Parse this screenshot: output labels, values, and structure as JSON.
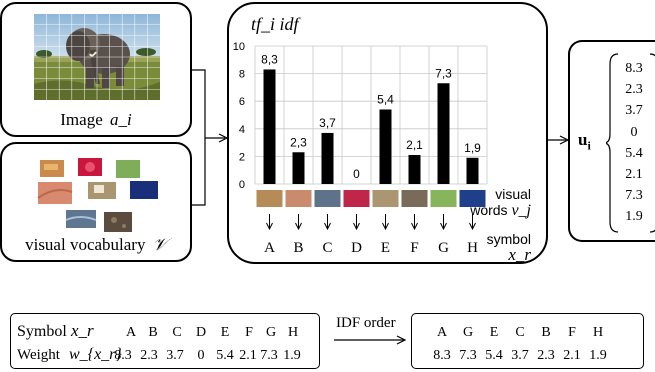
{
  "image_box": {
    "label": "Image",
    "math": "a_i"
  },
  "vocab_box": {
    "label": "visual vocabulary",
    "math": "𝒱"
  },
  "chart_data": {
    "type": "bar",
    "title": "tf_i idf",
    "categories": [
      "A",
      "B",
      "C",
      "D",
      "E",
      "F",
      "G",
      "H"
    ],
    "values": [
      8.3,
      2.3,
      3.7,
      0,
      5.4,
      2.1,
      7.3,
      1.9
    ],
    "value_labels": [
      "8,3",
      "2,3",
      "3,7",
      "0",
      "5,4",
      "2,1",
      "7,3",
      "1,9"
    ],
    "yticks": [
      "0",
      "2",
      "4",
      "6",
      "8",
      "10"
    ],
    "ylim": [
      0,
      10
    ],
    "grid": true,
    "visual_words_label": [
      "visual",
      "words"
    ],
    "visual_words_math": "v_j",
    "symbol_label": "symbol",
    "symbol_math": "x_r",
    "word_colors": [
      "#b58c57",
      "#c98a6e",
      "#5e7389",
      "#c0254a",
      "#aa9670",
      "#7a6a5a",
      "#86b55c",
      "#1f3f8a"
    ]
  },
  "vector": {
    "label": "u",
    "subscript": "i",
    "values": [
      "8.3",
      "2.3",
      "3.7",
      "0",
      "5.4",
      "2.1",
      "7.3",
      "1.9"
    ]
  },
  "table_left": {
    "symbol_label": "Symbol",
    "symbol_math": "x_r",
    "symbols": [
      "A",
      "B",
      "C",
      "D",
      "E",
      "F",
      "G",
      "H"
    ],
    "weight_label": "Weight",
    "weight_math": "w_{x_r}",
    "weights": [
      "8.3",
      "2.3",
      "3.7",
      "0",
      "5.4",
      "2.1",
      "7.3",
      "1.9"
    ]
  },
  "idf_order_label": "IDF order",
  "table_right": {
    "symbols": [
      "A",
      "G",
      "E",
      "C",
      "B",
      "F",
      "H"
    ],
    "weights": [
      "8.3",
      "7.3",
      "5.4",
      "3.7",
      "2.3",
      "2.1",
      "1.9"
    ]
  }
}
